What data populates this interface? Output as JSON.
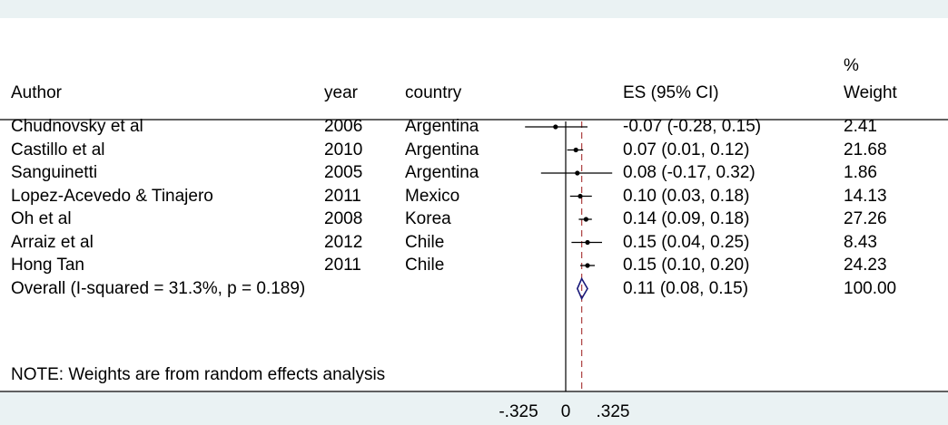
{
  "headers": {
    "author": "Author",
    "year": "year",
    "country": "country",
    "es": "ES (95% CI)",
    "weight_line1": "%",
    "weight_line2": "Weight"
  },
  "note": "NOTE: Weights are from random effects analysis",
  "colors": {
    "background": "#eaf2f3",
    "panel": "#ffffff",
    "reference_line": "#b04848",
    "diamond": "#1a1a7a"
  },
  "chart_data": {
    "type": "forest",
    "x_ticks": [
      "-.325",
      "0",
      ".325"
    ],
    "null_value": 0,
    "overall_line": 0.11,
    "studies": [
      {
        "author": "Chudnovsky et al",
        "year": "2006",
        "country": "Argentina",
        "es": -0.07,
        "lo": -0.28,
        "hi": 0.15,
        "es_text": "-0.07 (-0.28, 0.15)",
        "weight": "2.41"
      },
      {
        "author": "Castillo et al",
        "year": "2010",
        "country": "Argentina",
        "es": 0.07,
        "lo": 0.01,
        "hi": 0.12,
        "es_text": "0.07 (0.01, 0.12)",
        "weight": "21.68"
      },
      {
        "author": "Sanguinetti",
        "year": "2005",
        "country": "Argentina",
        "es": 0.08,
        "lo": -0.17,
        "hi": 0.32,
        "es_text": "0.08 (-0.17, 0.32)",
        "weight": "1.86"
      },
      {
        "author": "Lopez-Acevedo & Tinajero",
        "year": "2011",
        "country": "Mexico",
        "es": 0.1,
        "lo": 0.03,
        "hi": 0.18,
        "es_text": "0.10 (0.03, 0.18)",
        "weight": "14.13"
      },
      {
        "author": "Oh et al",
        "year": "2008",
        "country": "Korea",
        "es": 0.14,
        "lo": 0.09,
        "hi": 0.18,
        "es_text": "0.14 (0.09, 0.18)",
        "weight": "27.26"
      },
      {
        "author": "Arraiz et al",
        "year": "2012",
        "country": "Chile",
        "es": 0.15,
        "lo": 0.04,
        "hi": 0.25,
        "es_text": "0.15 (0.04, 0.25)",
        "weight": "8.43"
      },
      {
        "author": "Hong Tan",
        "year": "2011",
        "country": "Chile",
        "es": 0.15,
        "lo": 0.1,
        "hi": 0.2,
        "es_text": "0.15 (0.10, 0.20)",
        "weight": "24.23"
      }
    ],
    "overall": {
      "label": "Overall  (I-squared = 31.3%, p = 0.189)",
      "es": 0.11,
      "lo": 0.08,
      "hi": 0.15,
      "es_text": "0.11 (0.08, 0.15)",
      "weight": "100.00"
    }
  }
}
